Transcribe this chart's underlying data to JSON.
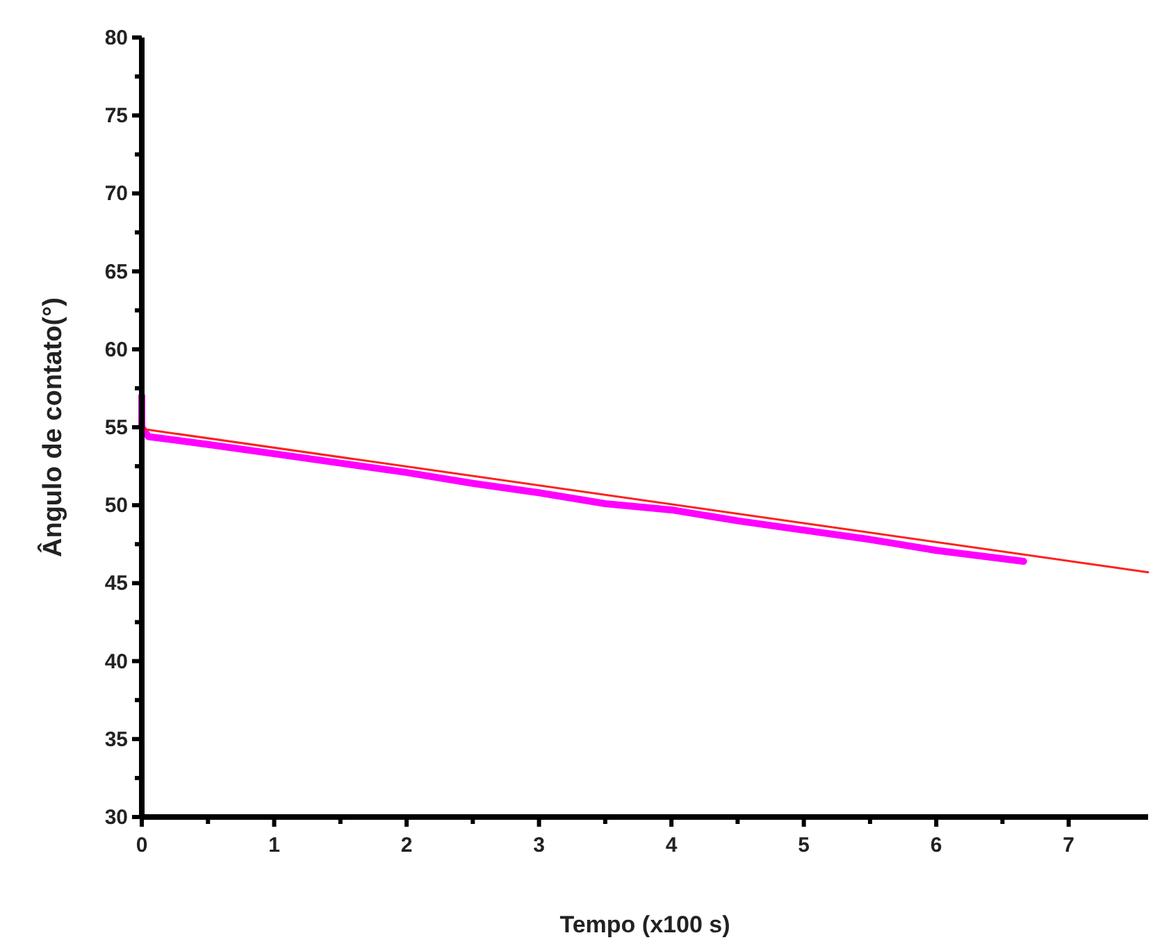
{
  "chart_data": {
    "type": "line",
    "xlabel": "Tempo (x100 s)",
    "ylabel": "Ângulo de contato(°)",
    "xlim": [
      0,
      7.6
    ],
    "xticks": [
      0,
      1,
      2,
      3,
      4,
      5,
      6,
      7
    ],
    "ylim": [
      30,
      80
    ],
    "yticks": [
      30,
      35,
      40,
      45,
      50,
      55,
      60,
      65,
      70,
      75,
      80
    ],
    "grid": false,
    "marker": "none",
    "series": [
      {
        "color": "#ff00ff",
        "x": [
          0,
          0,
          0.05,
          0.5,
          1,
          1.5,
          2,
          2.5,
          3,
          3.5,
          4,
          4.5,
          5,
          5.5,
          6,
          6.66
        ],
        "values": [
          57,
          55,
          54.4,
          53.9,
          53.3,
          52.7,
          52.1,
          51.4,
          50.8,
          50.1,
          49.7,
          49.0,
          48.4,
          47.8,
          47.1,
          46.4
        ]
      },
      {
        "color": "#ff2020",
        "x": [
          0,
          7.6
        ],
        "values": [
          54.9,
          45.7
        ]
      }
    ]
  }
}
